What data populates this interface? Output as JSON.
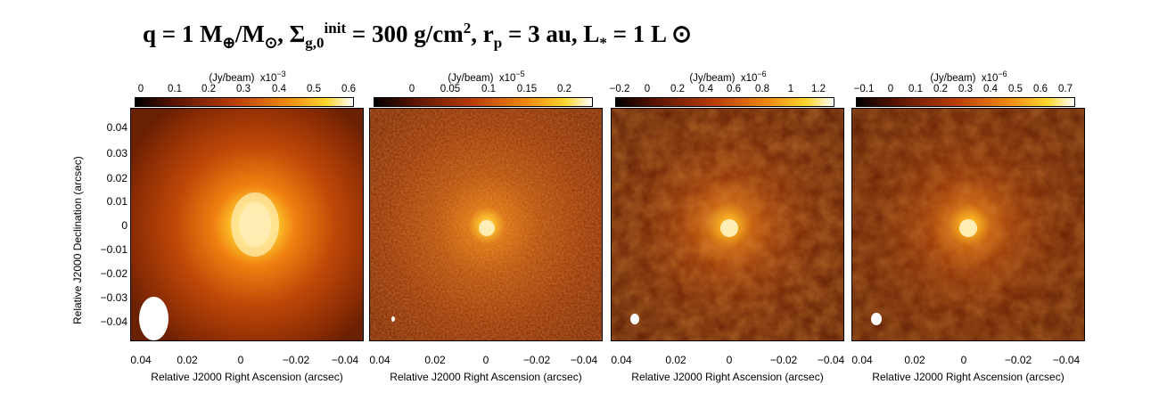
{
  "title": {
    "q_part": "q = 1 M",
    "q_sub1": "⊕",
    "q_mid": "/M",
    "q_sub2": "⊙",
    "sigma_part": ", Σ",
    "sigma_sub": "g,0",
    "sigma_sup": "init",
    "sigma_val": " = 300 g/cm",
    "sigma_unit_sup": "2",
    "rp_part": ",  r",
    "rp_sub": "p",
    "rp_val": " = 3 au,  L",
    "lstar_sub": "*",
    "lstar_val": " = 1 L ",
    "lsun_sym": "⊙"
  },
  "y_axis": {
    "label": "Relative J2000 Declination (arcsec)",
    "ticks": [
      "0.04",
      "0.03",
      "0.02",
      "0.01",
      "0",
      "−0.01",
      "−0.02",
      "−0.03",
      "−0.04"
    ]
  },
  "x_axis": {
    "label": "Relative J2000 Right Ascension (arcsec)",
    "ticks": [
      "0.04",
      "0.02",
      "0",
      "−0.02",
      "−0.04"
    ]
  },
  "panels": [
    {
      "colorbar_unit": "(Jy/beam)",
      "colorbar_scale": "x10",
      "colorbar_exp": "−3",
      "colorbar_ticks": [
        "0",
        "0.1",
        "0.2",
        "0.3",
        "0.4",
        "0.5",
        "0.6"
      ],
      "colorbar_range": [
        0,
        0.63
      ]
    },
    {
      "colorbar_unit": "(Jy/beam)",
      "colorbar_scale": "x10",
      "colorbar_exp": "−5",
      "colorbar_ticks": [
        "0",
        "0.05",
        "0.1",
        "0.15",
        "0.2"
      ],
      "colorbar_range": [
        -0.06,
        0.24
      ]
    },
    {
      "colorbar_unit": "(Jy/beam)",
      "colorbar_scale": "x10",
      "colorbar_exp": "−6",
      "colorbar_ticks": [
        "−0.2",
        "0",
        "0.2",
        "0.4",
        "0.6",
        "0.8",
        "1",
        "1.2"
      ],
      "colorbar_range": [
        -0.2,
        1.3
      ]
    },
    {
      "colorbar_unit": "(Jy/beam)",
      "colorbar_scale": "x10",
      "colorbar_exp": "−6",
      "colorbar_ticks": [
        "−0.1",
        "0",
        "0.1",
        "0.2",
        "0.3",
        "0.4",
        "0.5",
        "0.6",
        "0.7"
      ],
      "colorbar_range": [
        -0.1,
        0.77
      ]
    }
  ],
  "colors": {
    "cmap_low": "#000000",
    "cmap_mid": "#b83c08",
    "cmap_high": "#ffd830",
    "cmap_top": "#ffffff",
    "beam": "#ffffff"
  }
}
